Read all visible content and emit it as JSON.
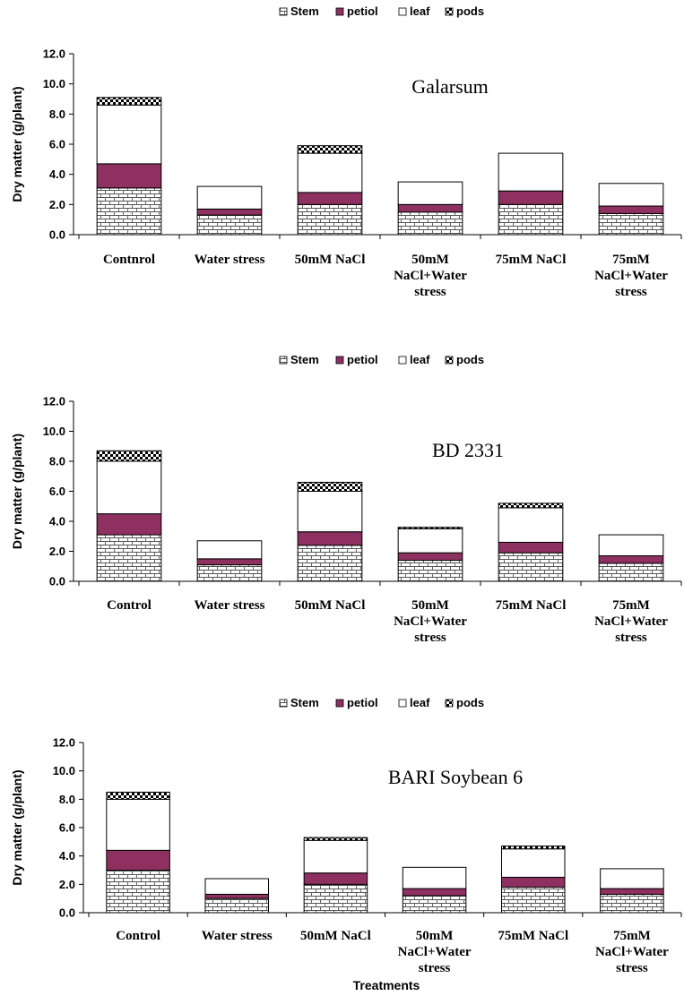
{
  "colors": {
    "stem_fill": "#ffffff",
    "stem_brick": "#555555",
    "petiol": "#8e3060",
    "leaf": "#ffffff",
    "pods_fill": "#ffffff",
    "pods_check": "#000000",
    "axis": "#000000"
  },
  "chart_data": [
    {
      "type": "bar",
      "stacked": true,
      "title": "Galarsum",
      "ylabel": "Dry matter (g/plant)",
      "xlabel": "",
      "ylim": [
        0,
        12
      ],
      "yticks": [
        "0.0",
        "2.0",
        "4.0",
        "6.0",
        "8.0",
        "10.0",
        "12.0"
      ],
      "legend_position": "top",
      "categories": [
        [
          "Contnrol"
        ],
        [
          "Water stress"
        ],
        [
          "50mM NaCl"
        ],
        [
          "50mM",
          "NaCl+Water",
          "stress"
        ],
        [
          "75mM NaCl"
        ],
        [
          "75mM",
          "NaCl+Water",
          "stress"
        ]
      ],
      "series": [
        {
          "name": "Stem",
          "values": [
            3.1,
            1.3,
            2.0,
            1.5,
            2.0,
            1.4
          ]
        },
        {
          "name": "petiol",
          "values": [
            1.6,
            0.4,
            0.8,
            0.5,
            0.9,
            0.5
          ]
        },
        {
          "name": "leaf",
          "values": [
            3.9,
            1.5,
            2.6,
            1.5,
            2.5,
            1.5
          ]
        },
        {
          "name": "pods",
          "values": [
            0.5,
            0.0,
            0.5,
            0.0,
            0.0,
            0.0
          ]
        }
      ]
    },
    {
      "type": "bar",
      "stacked": true,
      "title": "BD 2331",
      "ylabel": "Dry matter (g/plant)",
      "xlabel": "",
      "ylim": [
        0,
        12
      ],
      "yticks": [
        "0.0",
        "2.0",
        "4.0",
        "6.0",
        "8.0",
        "10.0",
        "12.0"
      ],
      "legend_position": "top",
      "categories": [
        [
          "Control"
        ],
        [
          "Water stress"
        ],
        [
          "50mM NaCl"
        ],
        [
          "50mM",
          "NaCl+Water",
          "stress"
        ],
        [
          "75mM NaCl"
        ],
        [
          "75mM",
          "NaCl+Water",
          "stress"
        ]
      ],
      "series": [
        {
          "name": "Stem",
          "values": [
            3.1,
            1.1,
            2.4,
            1.4,
            1.9,
            1.2
          ]
        },
        {
          "name": "petiol",
          "values": [
            1.4,
            0.4,
            0.9,
            0.5,
            0.7,
            0.5
          ]
        },
        {
          "name": "leaf",
          "values": [
            3.5,
            1.2,
            2.7,
            1.6,
            2.3,
            1.4
          ]
        },
        {
          "name": "pods",
          "values": [
            0.7,
            0.0,
            0.6,
            0.1,
            0.3,
            0.0
          ]
        }
      ]
    },
    {
      "type": "bar",
      "stacked": true,
      "title": "BARI Soybean 6",
      "ylabel": "Dry matter (g/plant)",
      "xlabel": "Treatments",
      "ylim": [
        0,
        12
      ],
      "yticks": [
        "0.0",
        "2.0",
        "4.0",
        "6.0",
        "8.0",
        "10.0",
        "12.0"
      ],
      "legend_position": "top",
      "categories": [
        [
          "Control"
        ],
        [
          "Water stress"
        ],
        [
          "50mM NaCl"
        ],
        [
          "50mM",
          "NaCl+Water",
          "stress"
        ],
        [
          "75mM NaCl"
        ],
        [
          "75mM",
          "NaCl+Water",
          "stress"
        ]
      ],
      "series": [
        {
          "name": "Stem",
          "values": [
            3.0,
            1.0,
            2.0,
            1.2,
            1.8,
            1.3
          ]
        },
        {
          "name": "petiol",
          "values": [
            1.4,
            0.3,
            0.8,
            0.5,
            0.7,
            0.4
          ]
        },
        {
          "name": "leaf",
          "values": [
            3.6,
            1.1,
            2.3,
            1.5,
            2.0,
            1.4
          ]
        },
        {
          "name": "pods",
          "values": [
            0.5,
            0.0,
            0.2,
            0.0,
            0.2,
            0.0
          ]
        }
      ]
    }
  ]
}
